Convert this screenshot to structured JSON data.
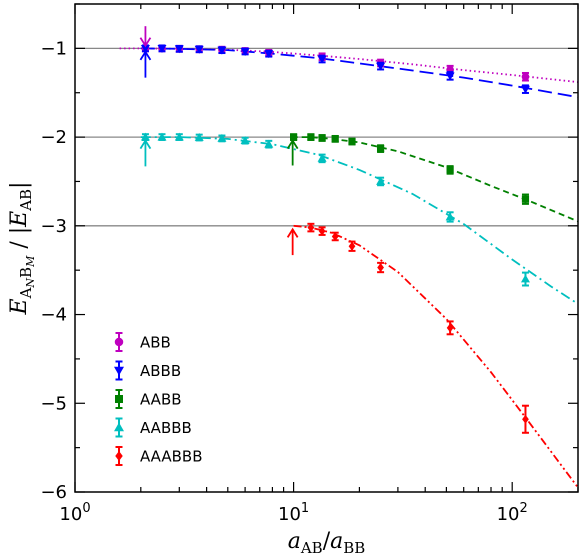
{
  "chart_data": {
    "type": "scatter",
    "xscale": "log",
    "xlim": [
      1,
      200
    ],
    "ylim": [
      -6,
      -0.5
    ],
    "xlabel_main": "a",
    "xlabel_sub1": "AB",
    "xlabel_sep": "/",
    "xlabel_main2": "a",
    "xlabel_sub2": "BB",
    "ylabel_main": "E",
    "ylabel_sub": "A",
    "ylabel_subsub1": "N",
    "ylabel_sub2": "B",
    "ylabel_subsub2": "M",
    "ylabel_sep": " / |",
    "ylabel_main2": "E",
    "ylabel_sub3": "AB",
    "ylabel_end": "|",
    "xticks": [
      {
        "value": 1,
        "base": "10",
        "exp": "0"
      },
      {
        "value": 10,
        "base": "10",
        "exp": "1"
      },
      {
        "value": 100,
        "base": "10",
        "exp": "2"
      }
    ],
    "yticks": [
      -1,
      -2,
      -3,
      -4,
      -5,
      -6
    ],
    "ytick_labels": [
      "−1",
      "−2",
      "−3",
      "−4",
      "−5",
      "−6"
    ],
    "reference_lines": [
      -1,
      -2,
      -3
    ],
    "legend_position": "lower-left",
    "series": [
      {
        "name": "ABB",
        "color": "#bf00bf",
        "marker": "circle",
        "line": "dotted",
        "x": [
          2.1,
          2.5,
          3.0,
          3.7,
          4.7,
          6.0,
          7.7,
          13.5,
          25.0,
          52.0,
          115.0
        ],
        "y": [
          -1.0,
          -1.0,
          -1.005,
          -1.01,
          -1.015,
          -1.03,
          -1.05,
          -1.095,
          -1.165,
          -1.24,
          -1.32
        ],
        "err": [
          0.01,
          0.01,
          0.01,
          0.01,
          0.01,
          0.01,
          0.01,
          0.015,
          0.015,
          0.02,
          0.02
        ],
        "fit_x": [
          1.6,
          2,
          3,
          5,
          8,
          13,
          20,
          35,
          60,
          100,
          200
        ],
        "fit_y": [
          -1.0,
          -1.0,
          -1.005,
          -1.015,
          -1.04,
          -1.08,
          -1.12,
          -1.18,
          -1.245,
          -1.3,
          -1.38
        ],
        "arrow": {
          "x": 2.1,
          "direction": "down",
          "from": -0.75,
          "to": -0.97
        }
      },
      {
        "name": "ABBB",
        "color": "#0000ff",
        "marker": "triangle-down",
        "line": "dashed",
        "x": [
          2.1,
          2.5,
          3.0,
          3.7,
          4.7,
          6.0,
          7.7,
          13.5,
          25.0,
          52.0,
          115.0
        ],
        "y": [
          -1.0,
          -1.0,
          -1.005,
          -1.01,
          -1.02,
          -1.035,
          -1.06,
          -1.12,
          -1.2,
          -1.31,
          -1.46
        ],
        "err": [
          0.01,
          0.01,
          0.01,
          0.01,
          0.01,
          0.01,
          0.01,
          0.015,
          0.015,
          0.02,
          0.02
        ],
        "fit_x": [
          2,
          3,
          5,
          8,
          13,
          20,
          35,
          60,
          100,
          200
        ],
        "fit_y": [
          -1.0,
          -1.005,
          -1.02,
          -1.06,
          -1.11,
          -1.17,
          -1.25,
          -1.33,
          -1.42,
          -1.55
        ],
        "arrow": {
          "x": 2.1,
          "direction": "up",
          "from": -1.33,
          "to": -1.04
        }
      },
      {
        "name": "AABB",
        "color": "#008000",
        "marker": "square",
        "line": "dashed-short",
        "x": [
          10.0,
          12.0,
          13.5,
          15.5,
          18.5,
          25.0,
          52.0,
          115.0
        ],
        "y": [
          -2.0,
          -2.0,
          -2.01,
          -2.02,
          -2.05,
          -2.13,
          -2.37,
          -2.7
        ],
        "err": [
          0.01,
          0.01,
          0.01,
          0.01,
          0.01,
          0.015,
          0.02,
          0.03
        ],
        "fit_x": [
          9.8,
          12,
          15,
          20,
          30,
          50,
          80,
          120,
          200
        ],
        "fit_y": [
          -2.0,
          -2.0,
          -2.02,
          -2.06,
          -2.16,
          -2.34,
          -2.55,
          -2.72,
          -2.95
        ],
        "arrow": {
          "x": 9.9,
          "direction": "up",
          "from": -2.32,
          "to": -2.04
        }
      },
      {
        "name": "AABBB",
        "color": "#00bfbf",
        "marker": "triangle-up",
        "line": "dashdot",
        "x": [
          2.1,
          2.5,
          3.0,
          3.7,
          4.7,
          6.0,
          7.7,
          13.5,
          25.0,
          52.0,
          115.0
        ],
        "y": [
          -2.0,
          -2.0,
          -2.0,
          -2.005,
          -2.015,
          -2.04,
          -2.08,
          -2.24,
          -2.5,
          -2.9,
          -3.6
        ],
        "err": [
          0.01,
          0.01,
          0.01,
          0.01,
          0.01,
          0.01,
          0.015,
          0.02,
          0.02,
          0.03,
          0.05
        ],
        "fit_x": [
          2,
          3,
          5,
          8,
          13,
          20,
          35,
          60,
          100,
          150,
          200
        ],
        "fit_y": [
          -2.0,
          -2.0,
          -2.02,
          -2.08,
          -2.2,
          -2.37,
          -2.64,
          -2.98,
          -3.38,
          -3.68,
          -3.88
        ],
        "arrow": {
          "x": 2.1,
          "direction": "up",
          "from": -2.33,
          "to": -2.04
        }
      },
      {
        "name": "AAABBB",
        "color": "#ff0000",
        "marker": "diamond",
        "line": "dashdotdot",
        "x": [
          12.0,
          13.5,
          15.5,
          18.5,
          25.0,
          52.0,
          115.0
        ],
        "y": [
          -3.02,
          -3.06,
          -3.12,
          -3.23,
          -3.47,
          -4.15,
          -5.18
        ],
        "err": [
          0.02,
          0.02,
          0.02,
          0.03,
          0.03,
          0.05,
          0.13
        ],
        "fit_x": [
          10,
          12,
          15,
          20,
          30,
          50,
          80,
          120,
          200
        ],
        "fit_y": [
          -3.0,
          -3.02,
          -3.08,
          -3.22,
          -3.52,
          -4.05,
          -4.65,
          -5.22,
          -5.95
        ],
        "arrow": {
          "x": 9.9,
          "direction": "up",
          "from": -3.33,
          "to": -3.04
        }
      }
    ]
  }
}
